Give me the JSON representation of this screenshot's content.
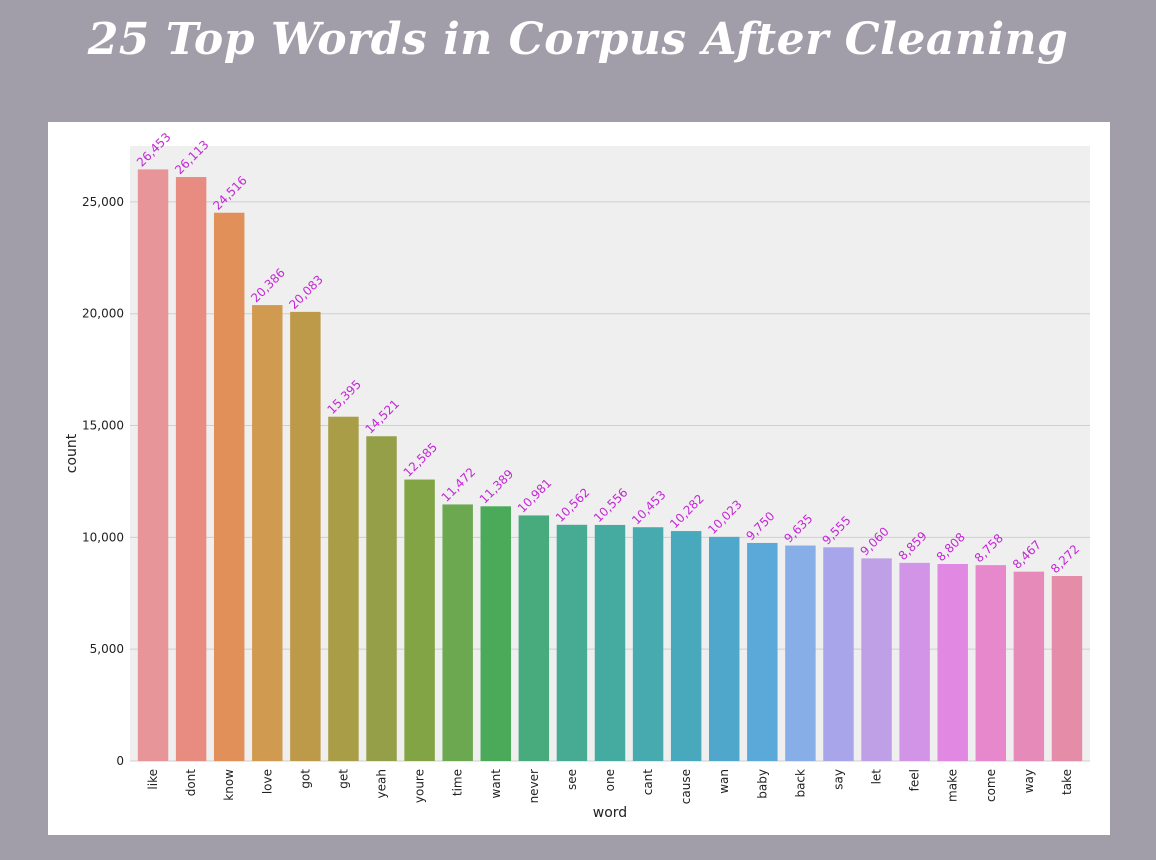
{
  "title": "25 Top Words in Corpus After Cleaning",
  "colors": {
    "background": "#a29ea9",
    "card": "#ffffff",
    "plot_bg": "#efefef",
    "grid": "#cfcfcf",
    "data_label": "#c428d6"
  },
  "chart_data": {
    "type": "bar",
    "xlabel": "word",
    "ylabel": "count",
    "ylim": [
      0,
      27500
    ],
    "yticks": [
      0,
      5000,
      10000,
      15000,
      20000,
      25000
    ],
    "ytick_labels": [
      "0",
      "5,000",
      "10,000",
      "15,000",
      "20,000",
      "25,000"
    ],
    "grid": true,
    "categories": [
      "like",
      "dont",
      "know",
      "love",
      "got",
      "get",
      "yeah",
      "youre",
      "time",
      "want",
      "never",
      "see",
      "one",
      "cant",
      "cause",
      "wan",
      "baby",
      "back",
      "say",
      "let",
      "feel",
      "make",
      "come",
      "way",
      "take"
    ],
    "values": [
      26453,
      26113,
      24516,
      20386,
      20083,
      15395,
      14521,
      12585,
      11472,
      11389,
      10981,
      10562,
      10556,
      10453,
      10282,
      10023,
      9750,
      9635,
      9555,
      9060,
      8859,
      8808,
      8758,
      8467,
      8272
    ],
    "value_labels": [
      "26,453",
      "26,113",
      "24,516",
      "20,386",
      "20,083",
      "15,395",
      "14,521",
      "12,585",
      "11,472",
      "11,389",
      "10,981",
      "10,562",
      "10,556",
      "10,453",
      "10,282",
      "10,023",
      "9,750",
      "9,635",
      "9,555",
      "9,060",
      "8,859",
      "8,808",
      "8,758",
      "8,467",
      "8,272"
    ],
    "bar_colors": [
      "#e8959a",
      "#e88c82",
      "#e2905a",
      "#d09a50",
      "#bd9a4a",
      "#a99d48",
      "#959f48",
      "#82a445",
      "#6ba84f",
      "#4aaa5a",
      "#47ab7e",
      "#46ab92",
      "#45aba1",
      "#46aaae",
      "#48a9bd",
      "#4fa8cb",
      "#5aa9d9",
      "#88aee8",
      "#a9a5ea",
      "#bfa0e6",
      "#d294e6",
      "#e088e2",
      "#e888cc",
      "#e68aba",
      "#e58da8"
    ]
  }
}
